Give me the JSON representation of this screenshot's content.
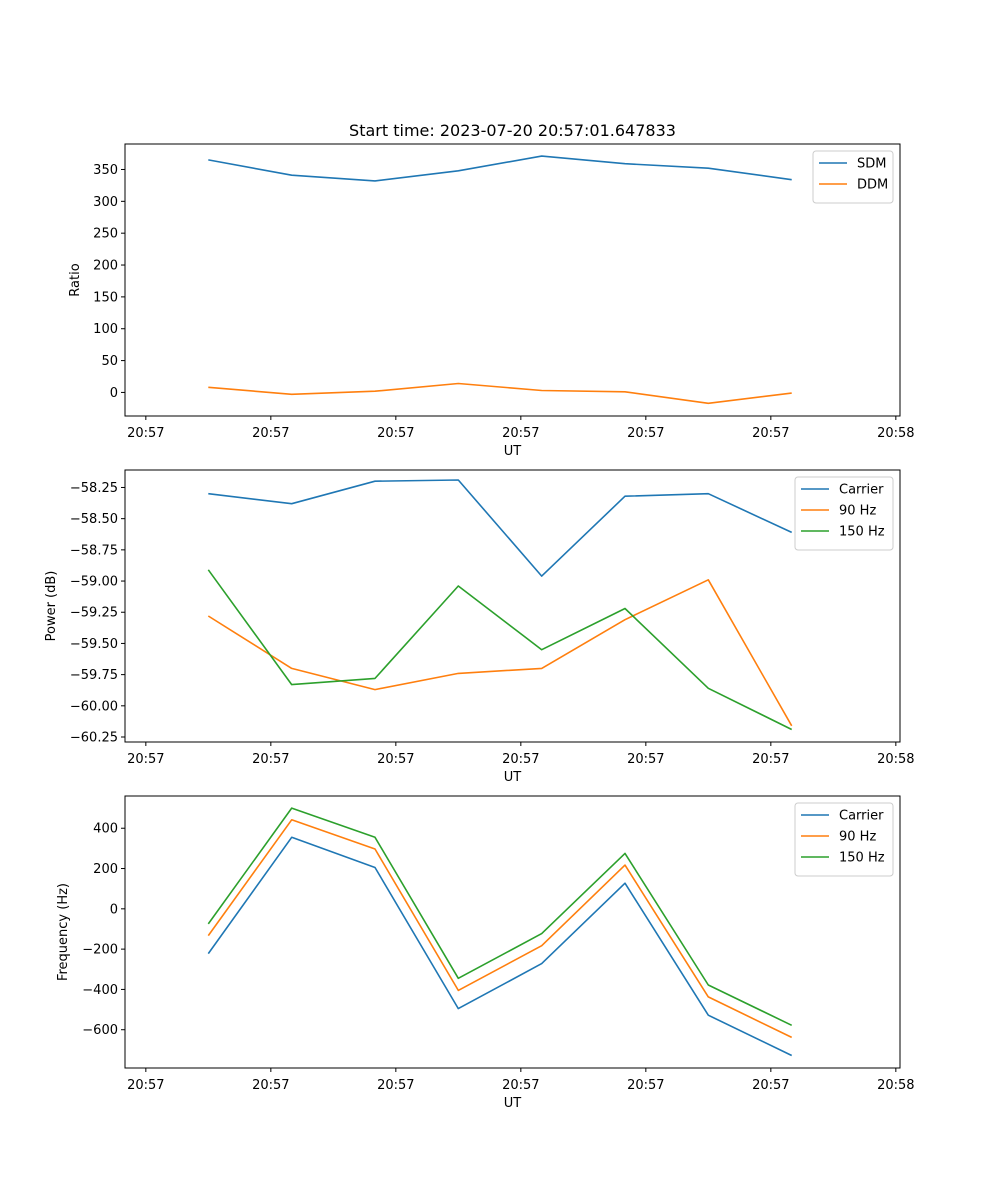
{
  "figure": {
    "title": "Start time: 2023-07-20 20:57:01.647833"
  },
  "chart_data": [
    {
      "type": "line",
      "title": "Start time: 2023-07-20 20:57:01.647833",
      "xlabel": "UT",
      "ylabel": "Ratio",
      "x": [
        1,
        2,
        3,
        4,
        5,
        6,
        7,
        8
      ],
      "x_ticks": [
        0.25,
        1.75,
        3.25,
        4.75,
        6.25,
        7.75,
        9.25
      ],
      "x_tick_labels": [
        "20:57",
        "20:57",
        "20:57",
        "20:57",
        "20:57",
        "20:57",
        "20:58"
      ],
      "xlim": [
        0.0,
        9.3
      ],
      "ylim": [
        -37,
        390
      ],
      "y_ticks": [
        0,
        50,
        100,
        150,
        200,
        250,
        300,
        350
      ],
      "y_tick_labels": [
        "0",
        "50",
        "100",
        "150",
        "200",
        "250",
        "300",
        "350"
      ],
      "legend": "top-right",
      "series": [
        {
          "name": "SDM",
          "color": "#1f77b4",
          "values": [
            365,
            341,
            332,
            348,
            371,
            359,
            352,
            334
          ]
        },
        {
          "name": "DDM",
          "color": "#ff7f0e",
          "values": [
            8,
            -3,
            2,
            14,
            3,
            1,
            -17,
            -1
          ]
        }
      ]
    },
    {
      "type": "line",
      "title": "",
      "xlabel": "UT",
      "ylabel": "Power (dB)",
      "x": [
        1,
        2,
        3,
        4,
        5,
        6,
        7,
        8
      ],
      "x_ticks": [
        0.25,
        1.75,
        3.25,
        4.75,
        6.25,
        7.75,
        9.25
      ],
      "x_tick_labels": [
        "20:57",
        "20:57",
        "20:57",
        "20:57",
        "20:57",
        "20:57",
        "20:58"
      ],
      "xlim": [
        0.0,
        9.3
      ],
      "ylim": [
        -60.29,
        -58.11
      ],
      "y_ticks": [
        -60.25,
        -60.0,
        -59.75,
        -59.5,
        -59.25,
        -59.0,
        -58.75,
        -58.5,
        -58.25
      ],
      "y_tick_labels": [
        "−60.25",
        "−60.00",
        "−59.75",
        "−59.50",
        "−59.25",
        "−59.00",
        "−58.75",
        "−58.50",
        "−58.25"
      ],
      "legend": "top-right",
      "series": [
        {
          "name": "Carrier",
          "color": "#1f77b4",
          "values": [
            -58.3,
            -58.38,
            -58.2,
            -58.19,
            -58.96,
            -58.32,
            -58.3,
            -58.61
          ]
        },
        {
          "name": "90 Hz",
          "color": "#ff7f0e",
          "values": [
            -59.28,
            -59.7,
            -59.87,
            -59.74,
            -59.7,
            -59.31,
            -58.99,
            -60.16
          ]
        },
        {
          "name": "150 Hz",
          "color": "#2ca02c",
          "values": [
            -58.91,
            -59.83,
            -59.78,
            -59.04,
            -59.55,
            -59.22,
            -59.86,
            -60.19
          ]
        }
      ]
    },
    {
      "type": "line",
      "title": "",
      "xlabel": "UT",
      "ylabel": "Frequency (Hz)",
      "x": [
        1,
        2,
        3,
        4,
        5,
        6,
        7,
        8
      ],
      "x_ticks": [
        0.25,
        1.75,
        3.25,
        4.75,
        6.25,
        7.75,
        9.25
      ],
      "x_tick_labels": [
        "20:57",
        "20:57",
        "20:57",
        "20:57",
        "20:57",
        "20:57",
        "20:58"
      ],
      "xlim": [
        0.0,
        9.3
      ],
      "ylim": [
        -790,
        560
      ],
      "y_ticks": [
        -600,
        -400,
        -200,
        0,
        200,
        400
      ],
      "y_tick_labels": [
        "−600",
        "−400",
        "−200",
        "0",
        "200",
        "400"
      ],
      "legend": "top-right",
      "series": [
        {
          "name": "Carrier",
          "color": "#1f77b4",
          "values": [
            -222,
            355,
            205,
            -495,
            -272,
            127,
            -528,
            -728
          ]
        },
        {
          "name": "90 Hz",
          "color": "#ff7f0e",
          "values": [
            -133,
            442,
            297,
            -405,
            -183,
            217,
            -437,
            -638
          ]
        },
        {
          "name": "150 Hz",
          "color": "#2ca02c",
          "values": [
            -75,
            500,
            355,
            -345,
            -123,
            275,
            -378,
            -578
          ]
        }
      ]
    }
  ]
}
